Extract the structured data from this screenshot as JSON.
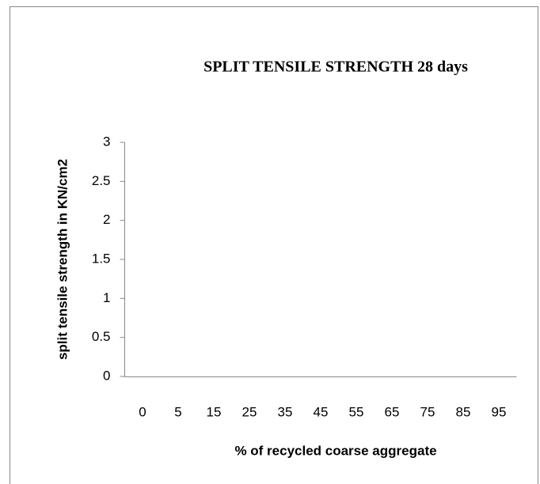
{
  "chart_data": {
    "type": "bar",
    "title": "SPLIT TENSILE STRENGTH 28 days",
    "x_label": "% of recycled coarse aggregate",
    "y_label": "split tensile strength in KN/cm2",
    "categories": [
      "0",
      "5",
      "15",
      "25",
      "35",
      "45",
      "55",
      "65",
      "75",
      "85",
      "95"
    ],
    "ylim": [
      0,
      3
    ],
    "yticks": [
      0,
      0.5,
      1,
      1.5,
      2,
      2.5,
      3
    ],
    "grid": false
  }
}
